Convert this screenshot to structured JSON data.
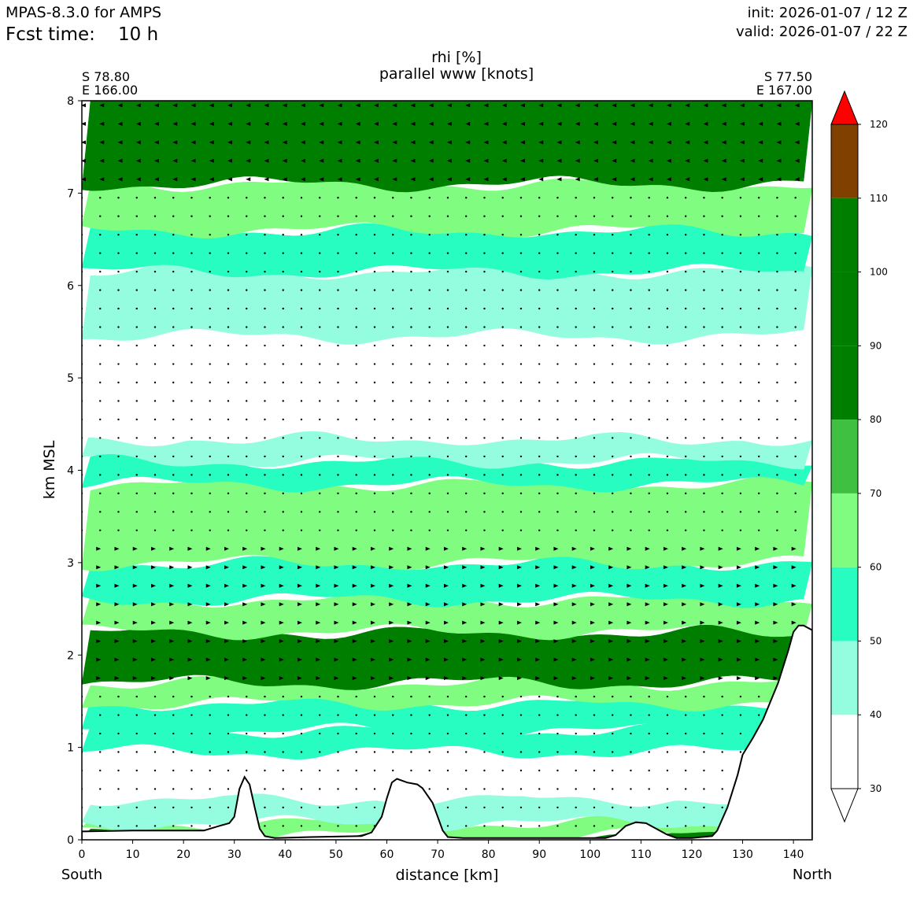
{
  "header": {
    "model": "MPAS-8.3.0 for AMPS",
    "fcst_label": "Fcst time:",
    "fcst_value": "10 h",
    "init": "init: 2026-01-07 / 12 Z",
    "valid": "valid: 2026-01-07 / 22 Z"
  },
  "chart_data": {
    "type": "heatmap",
    "title": "rhi [%]",
    "subtitle": "parallel www [knots]",
    "xlabel": "distance [km]",
    "ylabel": "km MSL",
    "xlim": [
      0,
      143.7
    ],
    "ylim": [
      0,
      8
    ],
    "x_ticks": [
      0,
      10,
      20,
      30,
      40,
      50,
      60,
      70,
      80,
      90,
      100,
      110,
      120,
      130,
      140
    ],
    "y_ticks": [
      0,
      1,
      2,
      3,
      4,
      5,
      6,
      7,
      8
    ],
    "endpoints": {
      "left": [
        "S 78.80",
        "E 166.00"
      ],
      "right": [
        "S 77.50",
        "E 167.00"
      ],
      "left_dir": "South",
      "right_dir": "North"
    },
    "colorbar": {
      "levels": [
        30,
        40,
        50,
        60,
        70,
        80,
        90,
        100,
        110,
        120
      ],
      "tick_labels": [
        "30",
        "40",
        "50",
        "60",
        "70",
        "80",
        "90",
        "100",
        "110",
        "120"
      ],
      "colors": [
        "#ffffff",
        "#94fde0",
        "#27fdc0",
        "#80fd80",
        "#40c040",
        "#007e00",
        "#007e00",
        "#007e00",
        "#804000",
        "#ff0000"
      ],
      "extend": "both"
    },
    "terrain_km": [
      [
        0,
        0.09
      ],
      [
        10,
        0.1
      ],
      [
        20,
        0.1
      ],
      [
        24,
        0.1
      ],
      [
        27,
        0.15
      ],
      [
        29,
        0.18
      ],
      [
        30,
        0.25
      ],
      [
        31,
        0.55
      ],
      [
        32,
        0.68
      ],
      [
        33,
        0.6
      ],
      [
        34,
        0.35
      ],
      [
        35,
        0.12
      ],
      [
        36,
        0.04
      ],
      [
        38,
        0.02
      ],
      [
        45,
        0.03
      ],
      [
        55,
        0.04
      ],
      [
        57,
        0.08
      ],
      [
        59,
        0.25
      ],
      [
        60,
        0.45
      ],
      [
        61,
        0.62
      ],
      [
        62,
        0.66
      ],
      [
        64,
        0.62
      ],
      [
        66,
        0.6
      ],
      [
        67,
        0.56
      ],
      [
        69,
        0.4
      ],
      [
        70,
        0.25
      ],
      [
        71,
        0.1
      ],
      [
        72,
        0.03
      ],
      [
        75,
        0.02
      ],
      [
        95,
        0.02
      ],
      [
        103,
        0.02
      ],
      [
        105,
        0.05
      ],
      [
        107,
        0.15
      ],
      [
        109,
        0.19
      ],
      [
        111,
        0.18
      ],
      [
        113,
        0.12
      ],
      [
        115,
        0.06
      ],
      [
        117,
        0.02
      ],
      [
        120,
        0.02
      ],
      [
        124,
        0.04
      ],
      [
        125,
        0.1
      ],
      [
        127,
        0.35
      ],
      [
        129,
        0.7
      ],
      [
        130,
        0.92
      ],
      [
        132,
        1.1
      ],
      [
        134,
        1.3
      ],
      [
        137,
        1.7
      ],
      [
        139,
        2.05
      ],
      [
        140,
        2.25
      ],
      [
        141,
        2.32
      ],
      [
        142,
        2.32
      ],
      [
        143.7,
        2.27
      ]
    ],
    "rhi_bands": [
      {
        "from_km": 0.0,
        "to_km": 0.05,
        "value": 90
      },
      {
        "from_km": 0.05,
        "to_km": 0.18,
        "value": 60
      },
      {
        "from_km": 0.18,
        "to_km": 0.45,
        "value": 45
      },
      {
        "from_km": 0.45,
        "to_km": 0.95,
        "value": 35
      },
      {
        "from_km": 0.95,
        "to_km": 1.18,
        "value": 55
      },
      {
        "from_km": 1.18,
        "to_km": 1.48,
        "value": 55
      },
      {
        "from_km": 1.48,
        "to_km": 1.7,
        "value": 65
      },
      {
        "from_km": 1.7,
        "to_km": 2.25,
        "value": 90
      },
      {
        "from_km": 2.25,
        "to_km": 2.6,
        "value": 65
      },
      {
        "from_km": 2.6,
        "to_km": 3.0,
        "value": 55
      },
      {
        "from_km": 3.0,
        "to_km": 3.85,
        "value": 65
      },
      {
        "from_km": 3.85,
        "to_km": 4.1,
        "value": 55
      },
      {
        "from_km": 4.1,
        "to_km": 4.35,
        "value": 45
      },
      {
        "from_km": 4.35,
        "to_km": 5.45,
        "value": 35
      },
      {
        "from_km": 5.45,
        "to_km": 6.15,
        "value": 45
      },
      {
        "from_km": 6.15,
        "to_km": 6.6,
        "value": 55
      },
      {
        "from_km": 6.6,
        "to_km": 7.1,
        "value": 65
      },
      {
        "from_km": 7.1,
        "to_km": 8.0,
        "value": 90
      }
    ]
  }
}
